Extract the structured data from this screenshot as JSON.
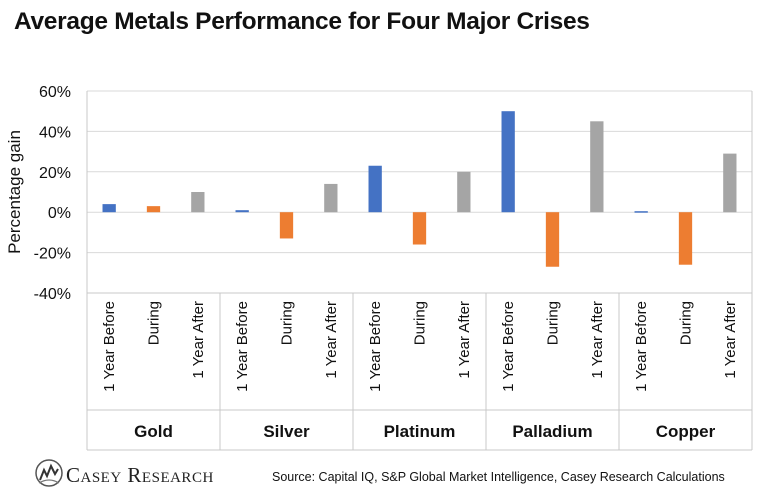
{
  "chart_data": {
    "type": "bar",
    "title": "Average Metals Performance for Four Major Crises",
    "ylabel": "Percentage gain",
    "xlabel": "",
    "ylim": [
      -40,
      60
    ],
    "yticks": [
      -40,
      -20,
      0,
      20,
      40,
      60
    ],
    "ytick_labels": [
      "-40%",
      "-20%",
      "0%",
      "20%",
      "40%",
      "60%"
    ],
    "grid": true,
    "legend": "none",
    "groups": [
      "Gold",
      "Silver",
      "Platinum",
      "Palladium",
      "Copper"
    ],
    "periods": [
      "1 Year Before",
      "During",
      "1 Year After"
    ],
    "period_colors": [
      "#4472c4",
      "#ed7d31",
      "#a5a5a5"
    ],
    "values": [
      [
        4,
        3,
        10
      ],
      [
        1,
        -13,
        14
      ],
      [
        23,
        -16,
        20
      ],
      [
        50,
        -27,
        45
      ],
      [
        0.5,
        -26,
        29
      ]
    ]
  },
  "footer": {
    "logo_text": "Casey Research",
    "source": "Source: Capital IQ, S&P Global Market Intelligence, Casey Research Calculations"
  }
}
